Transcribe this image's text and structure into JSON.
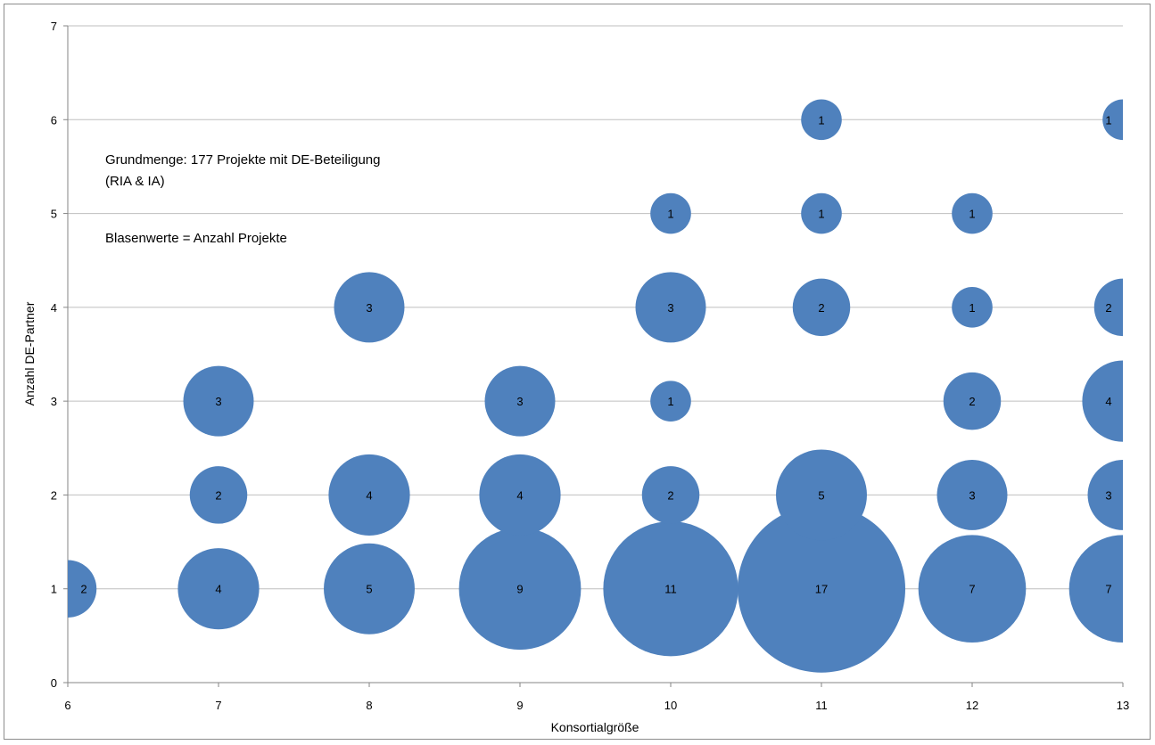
{
  "chart_data": {
    "type": "bubble",
    "title": "",
    "xlabel": "Konsortialgröße",
    "ylabel": "Anzahl DE-Partner",
    "xlim": [
      6,
      13
    ],
    "ylim": [
      0,
      7
    ],
    "x_ticks": [
      "6",
      "7",
      "8",
      "9",
      "10",
      "11",
      "12",
      "13"
    ],
    "y_ticks": [
      "0",
      "1",
      "2",
      "3",
      "4",
      "5",
      "6",
      "7"
    ],
    "grid": "horizontal",
    "bubble_color": "#4f81bd",
    "annotations": [
      "Grundmenge: 177 Projekte mit DE-Beteiligung",
      "(RIA & IA)",
      "Blasenwerte = Anzahl Projekte"
    ],
    "points": [
      {
        "x": 6,
        "y": 1,
        "value": 2
      },
      {
        "x": 7,
        "y": 1,
        "value": 4
      },
      {
        "x": 7,
        "y": 2,
        "value": 2
      },
      {
        "x": 7,
        "y": 3,
        "value": 3
      },
      {
        "x": 8,
        "y": 1,
        "value": 5
      },
      {
        "x": 8,
        "y": 2,
        "value": 4
      },
      {
        "x": 8,
        "y": 4,
        "value": 3
      },
      {
        "x": 9,
        "y": 1,
        "value": 9
      },
      {
        "x": 9,
        "y": 2,
        "value": 4
      },
      {
        "x": 9,
        "y": 3,
        "value": 3
      },
      {
        "x": 10,
        "y": 1,
        "value": 11
      },
      {
        "x": 10,
        "y": 2,
        "value": 2
      },
      {
        "x": 10,
        "y": 3,
        "value": 1
      },
      {
        "x": 10,
        "y": 4,
        "value": 3
      },
      {
        "x": 10,
        "y": 5,
        "value": 1
      },
      {
        "x": 11,
        "y": 1,
        "value": 17
      },
      {
        "x": 11,
        "y": 2,
        "value": 5
      },
      {
        "x": 11,
        "y": 4,
        "value": 2
      },
      {
        "x": 11,
        "y": 5,
        "value": 1
      },
      {
        "x": 11,
        "y": 6,
        "value": 1
      },
      {
        "x": 12,
        "y": 1,
        "value": 7
      },
      {
        "x": 12,
        "y": 2,
        "value": 3
      },
      {
        "x": 12,
        "y": 3,
        "value": 2
      },
      {
        "x": 12,
        "y": 4,
        "value": 1
      },
      {
        "x": 12,
        "y": 5,
        "value": 1
      },
      {
        "x": 13,
        "y": 1,
        "value": 7
      },
      {
        "x": 13,
        "y": 2,
        "value": 3
      },
      {
        "x": 13,
        "y": 3,
        "value": 4
      },
      {
        "x": 13,
        "y": 4,
        "value": 2
      },
      {
        "x": 13,
        "y": 6,
        "value": 1
      }
    ]
  }
}
